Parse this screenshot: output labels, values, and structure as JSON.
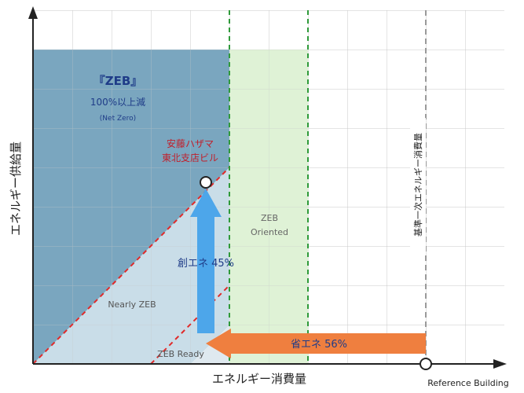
{
  "axes": {
    "y_label": "エネルギー供給量",
    "x_label": "エネルギー消費量",
    "reference_label": "Reference Building",
    "reference_vertical_label": "基準一次エネルギー消費量"
  },
  "zones": {
    "zeb": {
      "title": "『ZEB』",
      "subtitle": "100%以上減",
      "note": "(Net Zero)"
    },
    "nearly_zeb": "Nearly ZEB",
    "zeb_ready": "ZEB Ready",
    "zeb_oriented": {
      "line1": "ZEB",
      "line2": "Oriented"
    }
  },
  "building": {
    "line1": "安藤ハザマ",
    "line2": "東北支店ビル"
  },
  "arrows": {
    "creation": "創エネ 45%",
    "saving": "省エネ 56%"
  },
  "colors": {
    "zeb_fill": "#7aa6bf",
    "nearly_fill": "#c9dde8",
    "oriented_fill": "#dff2d6",
    "up_arrow": "#4da6ea",
    "left_arrow": "#ef7f3f",
    "guide_green": "#2f9a3a",
    "guide_gray": "#999999",
    "red_dash": "#e02a2a",
    "text_navy": "#1f3c88",
    "text_red": "#c0202c"
  }
}
